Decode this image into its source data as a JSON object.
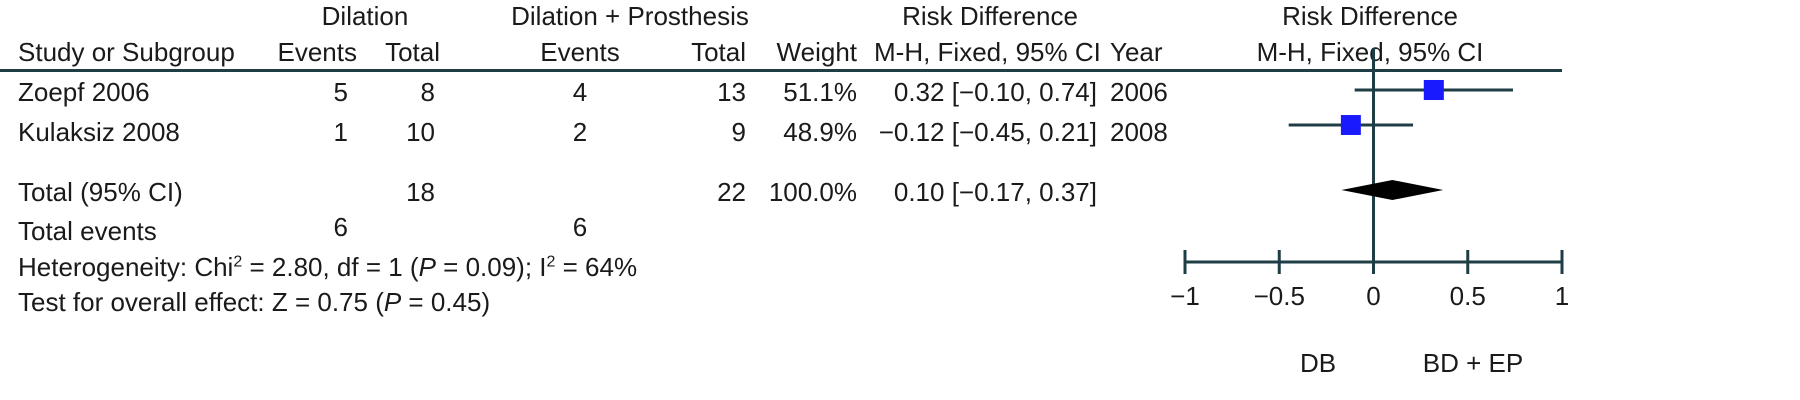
{
  "headers": {
    "group1": "Dilation",
    "group2": "Dilation + Prosthesis",
    "rd_group": "Risk Difference",
    "plot_group": "Risk Difference",
    "study": "Study or Subgroup",
    "events1": "Events",
    "total1": "Total",
    "events2": "Events",
    "total2": "Total",
    "weight": "Weight",
    "method": "M-H, Fixed, 95% CI",
    "year": "Year",
    "plot_method": "M-H, Fixed, 95% CI"
  },
  "studies": [
    {
      "name": "Zoepf 2006",
      "events1": "5",
      "total1": "8",
      "events2": "4",
      "total2": "13",
      "weight": "51.1%",
      "ci_text": "0.32 [−0.10, 0.74]",
      "year": "2006"
    },
    {
      "name": "Kulaksiz 2008",
      "events1": "1",
      "total1": "10",
      "events2": "2",
      "total2": "9",
      "weight": "48.9%",
      "ci_text": "−0.12 [−0.45, 0.21]",
      "year": "2008"
    }
  ],
  "total": {
    "label": "Total (95% CI)",
    "total1": "18",
    "total2": "22",
    "weight": "100.0%",
    "ci_text": "0.10 [−0.17, 0.37]"
  },
  "total_events": {
    "label": "Total events",
    "events1": "6",
    "events2": "6"
  },
  "footer": {
    "het_a": "Heterogeneity: Chi",
    "het_sup1": "2",
    "het_b": " = 2.80, df = 1 (",
    "het_p": "P",
    "het_c": " = 0.09); I",
    "het_sup2": "2",
    "het_d": " = 64%",
    "test_a": "Test for overall effect: Z = 0.75 (",
    "test_p": "P",
    "test_b": " = 0.45)"
  },
  "chart_data": {
    "type": "forest",
    "xlim": [
      -1,
      1
    ],
    "ticks": [
      -1,
      -0.5,
      0,
      0.5,
      1
    ],
    "tick_labels": [
      "−1",
      "−0.5",
      "0",
      "0.5",
      "1"
    ],
    "favours_left": "DB",
    "favours_right": "BD + EP",
    "studies": [
      {
        "name": "Zoepf 2006",
        "estimate": 0.32,
        "lower": -0.1,
        "upper": 0.74,
        "weight": 51.1
      },
      {
        "name": "Kulaksiz 2008",
        "estimate": -0.12,
        "lower": -0.45,
        "upper": 0.21,
        "weight": 48.9
      }
    ],
    "pooled": {
      "estimate": 0.1,
      "lower": -0.17,
      "upper": 0.37
    },
    "colors": {
      "square": "#1a1aff",
      "line": "#1f3d44",
      "diamond": "#000000"
    }
  }
}
